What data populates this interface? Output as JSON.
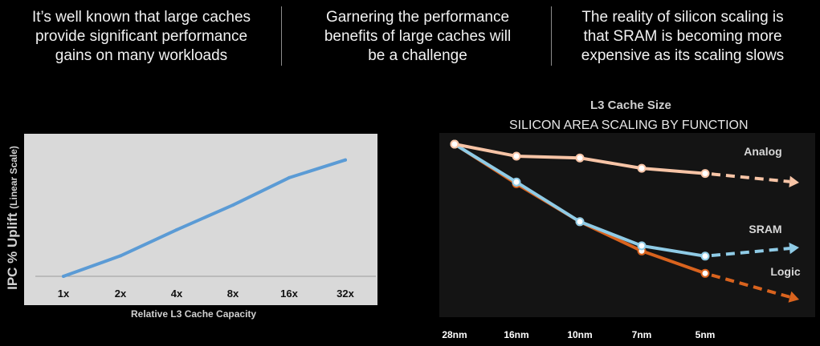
{
  "headers": [
    {
      "lines": [
        "It’s well known that large caches",
        "provide significant performance",
        "gains on many workloads"
      ]
    },
    {
      "lines": [
        "Garnering the performance",
        "benefits of large caches will",
        "be a challenge"
      ]
    },
    {
      "lines": [
        "The reality of silicon scaling is",
        "that SRAM is becoming more",
        "expensive as its scaling slows"
      ]
    }
  ],
  "colors": {
    "background": "#000000",
    "left_panel": "#d9d9d9",
    "left_line": "#5b9bd5",
    "right_panel": "#141414",
    "analog": "#f7c4a6",
    "sram": "#8fcbe6",
    "logic": "#d9631e"
  },
  "chart_data": [
    {
      "type": "line",
      "title": "",
      "xlabel": "Relative L3 Cache Capacity",
      "ylabel": "IPC % Uplift",
      "ylabel_note": "(Linear Scale)",
      "categories": [
        "1x",
        "2x",
        "4x",
        "8x",
        "16x",
        "32x"
      ],
      "series": [
        {
          "values": [
            0,
            15,
            34,
            52,
            72,
            85
          ]
        }
      ],
      "ylim": [
        0,
        100
      ],
      "grid": false,
      "legend": "none"
    },
    {
      "type": "line",
      "title": "L3 Cache Size",
      "subtitle": "SILICON AREA SCALING BY FUNCTION",
      "xlabel": "",
      "ylabel": "",
      "categories": [
        "28nm",
        "16nm",
        "10nm",
        "7nm",
        "5nm"
      ],
      "series": [
        {
          "name": "Analog",
          "values": [
            1.0,
            0.93,
            0.92,
            0.86,
            0.83
          ],
          "trend": "dashed-arrow"
        },
        {
          "name": "SRAM",
          "values": [
            1.0,
            0.78,
            0.55,
            0.41,
            0.35
          ],
          "trend": "dashed-arrow"
        },
        {
          "name": "Logic",
          "values": [
            1.0,
            0.77,
            0.55,
            0.38,
            0.25
          ],
          "trend": "dashed-arrow"
        }
      ],
      "ylim": [
        0,
        1
      ],
      "grid": false,
      "legend": "inline-right"
    }
  ]
}
